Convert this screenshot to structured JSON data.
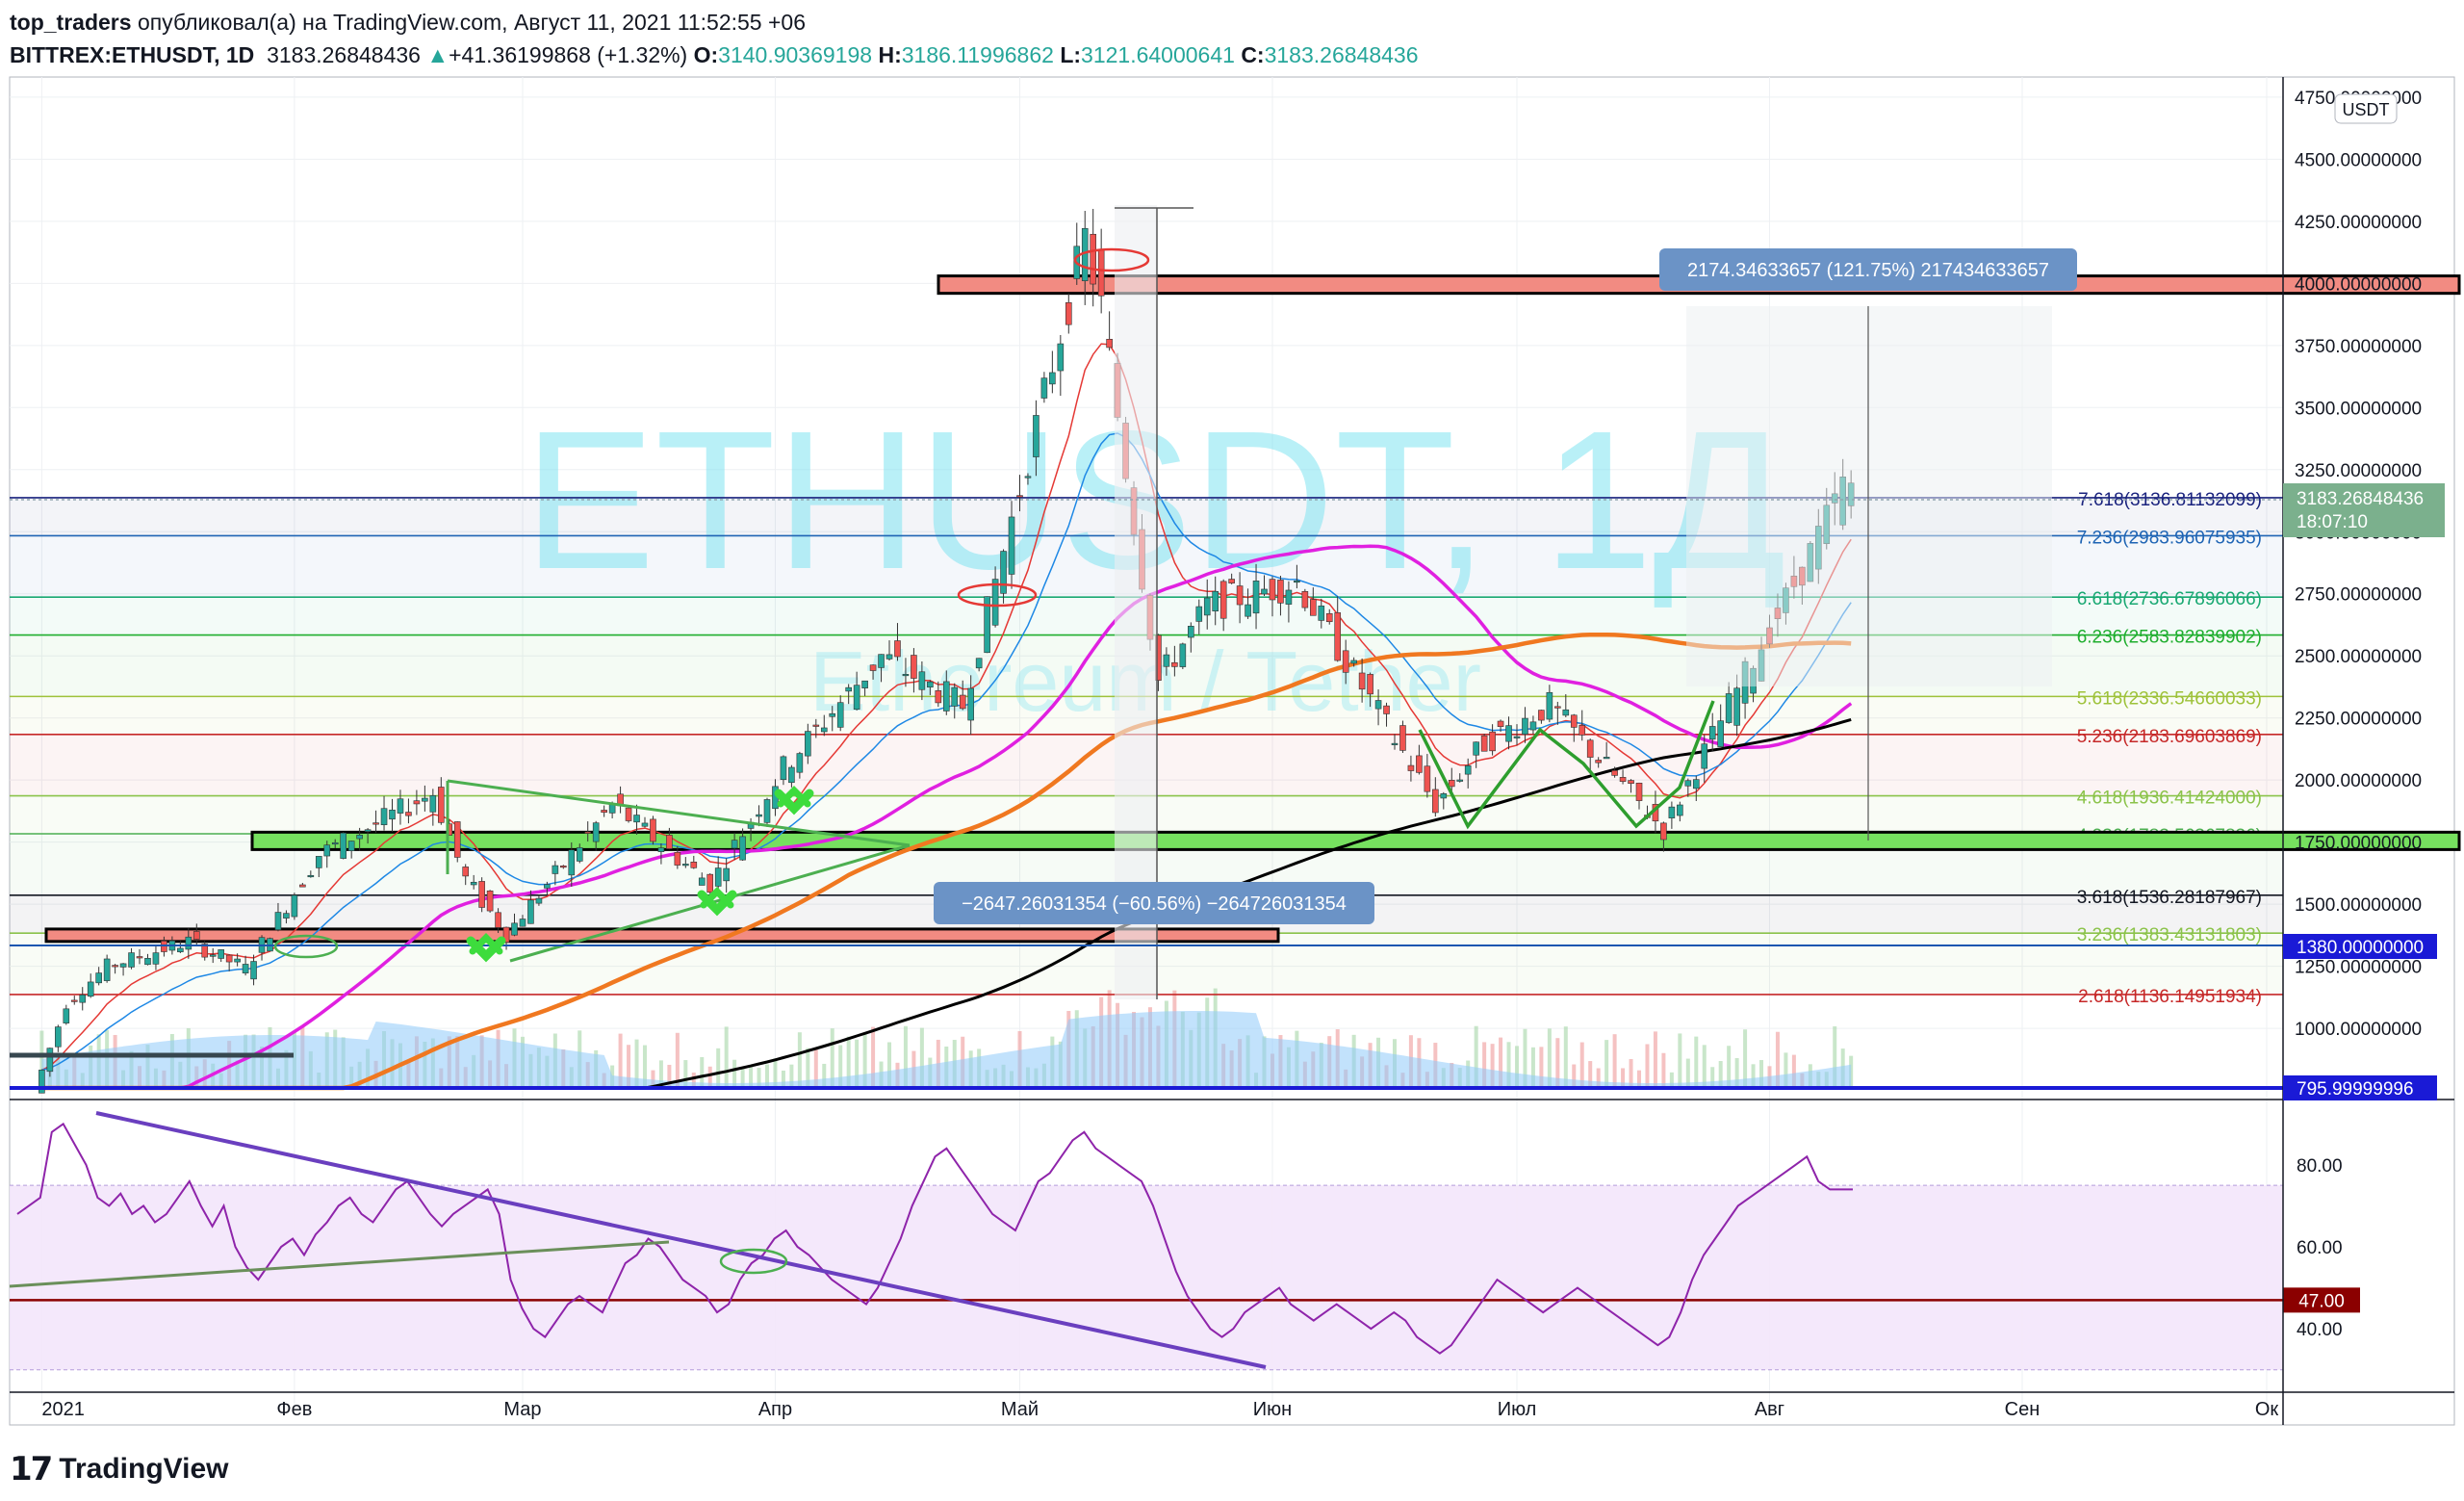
{
  "header": {
    "author": "top_traders",
    "published_text": "опубликовал(а) на TradingView.com, Август 11, 2021 11:52:55 +06",
    "symbol": "BITTREX:ETHUSDT, 1D",
    "last": "3183.26848436",
    "change_arrow": "▲",
    "change": "+41.36199868 (+1.32%)",
    "o_label": "O:",
    "o": "3140.90369198",
    "h_label": "H:",
    "h": "3186.11996862",
    "l_label": "L:",
    "l": "3121.64000641",
    "c_label": "C:",
    "c": "3183.26848436"
  },
  "watermark": {
    "symbol": "ETHUSDT, 1Д",
    "name": "Ethereum / Tether"
  },
  "currency_badge": "USDT",
  "footer": {
    "brand": "TradingView",
    "logo_icon": "tradingview-logo-icon"
  },
  "colors": {
    "up": "#26a69a",
    "down": "#ef5350",
    "ema_fast": "#e53935",
    "ema_slow": "#1e88e5",
    "ma_magenta": "#e020e0",
    "ma_orange": "#f07820",
    "ma_black": "#000000",
    "volume": "#90caf9",
    "rsi": "#8e24aa",
    "rsi_band": "#f3e5fb",
    "watermark": "#7fe3f0"
  },
  "price_labels": {
    "last_price": "3183.26848436",
    "countdown": "18:07:10",
    "level_1380": "1380.00000000",
    "level_796": "795.99999996"
  },
  "measure_up": "2174.34633657 (121.75%) 217434633657",
  "measure_down": "−2647.26031354 (−60.56%) −264726031354",
  "fib_levels": [
    {
      "label": "7.618(3136.81132099)",
      "color": "#1a237e"
    },
    {
      "label": "7.236(2983.96075935)",
      "color": "#1e64b4"
    },
    {
      "label": "6.618(2736.67896066)",
      "color": "#19a872"
    },
    {
      "label": "6.236(2583.82839902)",
      "color": "#1fae2e"
    },
    {
      "label": "5.618(2336.54660033)",
      "color": "#9ec23a"
    },
    {
      "label": "5.236(2183.69603869)",
      "color": "#c62828"
    },
    {
      "label": "4.618(1936.41424000)",
      "color": "#8bc34a"
    },
    {
      "label": "4.236(1783.56367836)",
      "color": "#4caf50"
    },
    {
      "label": "3.618(1536.28187967)",
      "color": "#131722"
    },
    {
      "label": "3.236(1383.43131803)",
      "color": "#8bc34a"
    },
    {
      "label": "2.618(1136.14951934)",
      "color": "#c62828"
    }
  ],
  "chart_data": [
    {
      "type": "candlestick",
      "title": "BITTREX:ETHUSDT, 1D",
      "x_tick_labels": [
        "2021",
        "Фев",
        "Мар",
        "Апр",
        "Май",
        "Июн",
        "Июл",
        "Авг",
        "Сен",
        "Ок"
      ],
      "y_tick_labels": [
        "4750.00000000",
        "4500.00000000",
        "4250.00000000",
        "4000.00000000",
        "3750.00000000",
        "3500.00000000",
        "3250.00000000",
        "3000.00000000",
        "2750.00000000",
        "2500.00000000",
        "2250.00000000",
        "2000.00000000",
        "1750.00000000",
        "1500.00000000",
        "1250.00000000",
        "1000.00000000"
      ],
      "ylim": [
        760,
        4800
      ],
      "price_path": [
        [
          "2021-01-01",
          740
        ],
        [
          "2021-01-05",
          1100
        ],
        [
          "2021-01-10",
          1250
        ],
        [
          "2021-01-20",
          1350
        ],
        [
          "2021-01-27",
          1240
        ],
        [
          "2021-02-05",
          1700
        ],
        [
          "2021-02-19",
          1950
        ],
        [
          "2021-02-23",
          1600
        ],
        [
          "2021-02-28",
          1380
        ],
        [
          "2021-03-13",
          1900
        ],
        [
          "2021-03-25",
          1580
        ],
        [
          "2021-04-03",
          2050
        ],
        [
          "2021-04-15",
          2500
        ],
        [
          "2021-04-25",
          2300
        ],
        [
          "2021-05-03",
          3300
        ],
        [
          "2021-05-10",
          4180
        ],
        [
          "2021-05-12",
          3900
        ],
        [
          "2021-05-19",
          2400
        ],
        [
          "2021-05-25",
          2700
        ],
        [
          "2021-06-05",
          2800
        ],
        [
          "2021-06-22",
          1900
        ],
        [
          "2021-06-28",
          2150
        ],
        [
          "2021-07-06",
          2300
        ],
        [
          "2021-07-20",
          1800
        ],
        [
          "2021-07-28",
          2300
        ],
        [
          "2021-08-06",
          2850
        ],
        [
          "2021-08-11",
          3183
        ]
      ],
      "moving_averages": [
        {
          "color": "#e53935",
          "kind": "fast"
        },
        {
          "color": "#1e88e5",
          "kind": "slow"
        },
        {
          "color": "#e020e0",
          "kind": "long"
        },
        {
          "color": "#f07820",
          "kind": "longer"
        },
        {
          "color": "#000000",
          "kind": "longest"
        }
      ],
      "zones": [
        {
          "from": 3960,
          "to": 4030,
          "color": "#f28b82"
        },
        {
          "from": 1720,
          "to": 1790,
          "color": "#76e05f"
        },
        {
          "from": 1350,
          "to": 1400,
          "color": "#f28b82"
        }
      ]
    },
    {
      "type": "line",
      "title": "RSI",
      "y_tick_labels": [
        "80.00",
        "60.00",
        "40.00"
      ],
      "ylim": [
        25,
        95
      ],
      "level_label": "47.00",
      "values": [
        68,
        70,
        72,
        88,
        90,
        85,
        80,
        72,
        70,
        73,
        68,
        70,
        66,
        68,
        72,
        76,
        70,
        65,
        70,
        60,
        55,
        52,
        56,
        60,
        62,
        58,
        63,
        66,
        70,
        72,
        68,
        66,
        70,
        74,
        76,
        72,
        68,
        65,
        68,
        70,
        72,
        74,
        68,
        52,
        45,
        40,
        38,
        42,
        46,
        48,
        46,
        44,
        50,
        56,
        58,
        62,
        60,
        56,
        52,
        50,
        48,
        44,
        46,
        52,
        56,
        58,
        62,
        64,
        60,
        58,
        55,
        52,
        50,
        48,
        46,
        50,
        56,
        62,
        70,
        76,
        82,
        84,
        80,
        76,
        72,
        68,
        66,
        64,
        70,
        76,
        78,
        82,
        86,
        88,
        84,
        82,
        80,
        78,
        76,
        70,
        62,
        54,
        48,
        44,
        40,
        38,
        40,
        44,
        46,
        48,
        50,
        46,
        44,
        42,
        44,
        46,
        44,
        42,
        40,
        42,
        44,
        42,
        38,
        36,
        34,
        36,
        40,
        44,
        48,
        52,
        50,
        48,
        46,
        44,
        46,
        48,
        50,
        48,
        46,
        44,
        42,
        40,
        38,
        36,
        38,
        44,
        52,
        58,
        62,
        66,
        70,
        72,
        74,
        76,
        78,
        80,
        82,
        76,
        74,
        74,
        74
      ]
    }
  ]
}
